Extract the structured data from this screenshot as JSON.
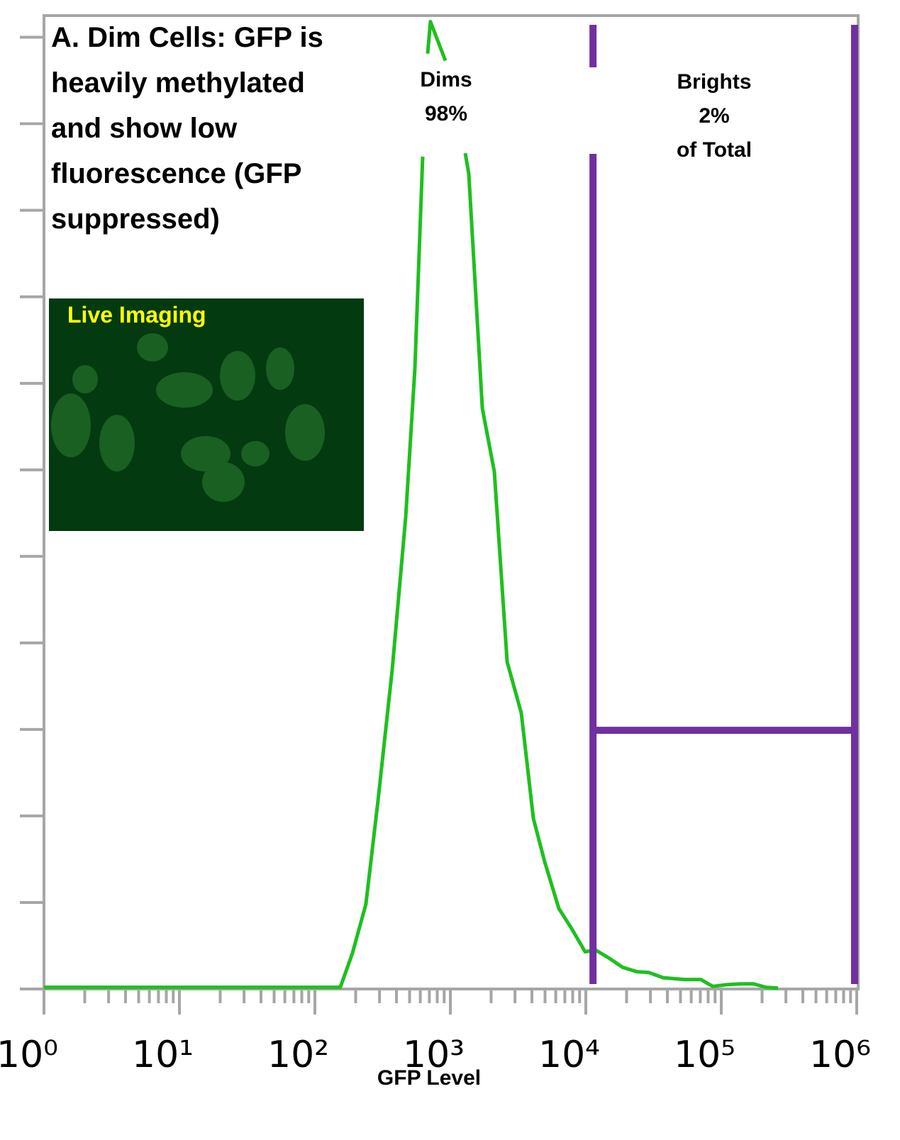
{
  "chart_data": {
    "type": "line",
    "title_lines": [
      "A. Dim Cells: GFP is",
      "heavily methylated",
      "and show low",
      "fluorescence (GFP",
      "suppressed)"
    ],
    "x_label": "GFP Level",
    "inset_label": "Live Imaging",
    "annotations": {
      "dims": [
        "Dims",
        "98%"
      ],
      "brights": [
        "Brights",
        "2%",
        "of Total"
      ]
    },
    "gate": {
      "x": [
        11300,
        964000
      ],
      "y": 2.99,
      "color": "#7030a0"
    },
    "xscale": "log",
    "xlim": [
      1,
      1000000
    ],
    "xticks": [
      {
        "value": 1,
        "label": "10⁰"
      },
      {
        "value": 10,
        "label": "10¹"
      },
      {
        "value": 100,
        "label": "10²"
      },
      {
        "value": 1000,
        "label": "10³"
      },
      {
        "value": 10000,
        "label": "10⁴"
      },
      {
        "value": 100000,
        "label": "10⁵"
      },
      {
        "value": 1000000,
        "label": "10⁶"
      }
    ],
    "xminor_ticks": [
      2,
      3,
      4,
      5,
      6,
      7,
      8,
      9,
      20,
      30,
      40,
      50,
      60,
      70,
      80,
      90,
      200,
      300,
      400,
      500,
      600,
      700,
      800,
      900,
      2000,
      3000,
      4000,
      5000,
      6000,
      7000,
      8000,
      9000,
      20000,
      30000,
      40000,
      50000,
      60000,
      70000,
      80000,
      90000,
      200000,
      300000,
      400000,
      500000,
      600000,
      700000,
      800000,
      900000
    ],
    "ylim": [
      0,
      11.25
    ],
    "yticks": [
      0,
      1,
      2,
      3,
      4,
      5,
      6,
      7,
      8,
      9,
      10,
      11
    ],
    "series": [
      {
        "name": "GFP",
        "color": "#1ec01e",
        "x": [
          1,
          154,
          189,
          238,
          292,
          372,
          468,
          547,
          625,
          null,
          680,
          713,
          919,
          null,
          1288,
          1368,
          1722,
          2112,
          2625,
          3339,
          4102,
          4969,
          6322,
          7852,
          9886,
          11840,
          15070,
          18720,
          23820,
          29240,
          37210,
          53460,
          70500,
          86530,
          110200,
          140200,
          172200,
          213700,
          262400
        ],
        "values": [
          0.02,
          0.02,
          0.41,
          0.98,
          2.17,
          3.69,
          5.45,
          7.17,
          9.62,
          null,
          10.81,
          11.18,
          10.73,
          null,
          9.66,
          9.42,
          6.71,
          5.98,
          3.78,
          3.19,
          1.97,
          1.47,
          0.93,
          0.7,
          0.43,
          0.45,
          0.35,
          0.25,
          0.2,
          0.19,
          0.13,
          0.11,
          0.11,
          0.03,
          0.05,
          0.06,
          0.06,
          0.02,
          0.01
        ]
      }
    ]
  }
}
